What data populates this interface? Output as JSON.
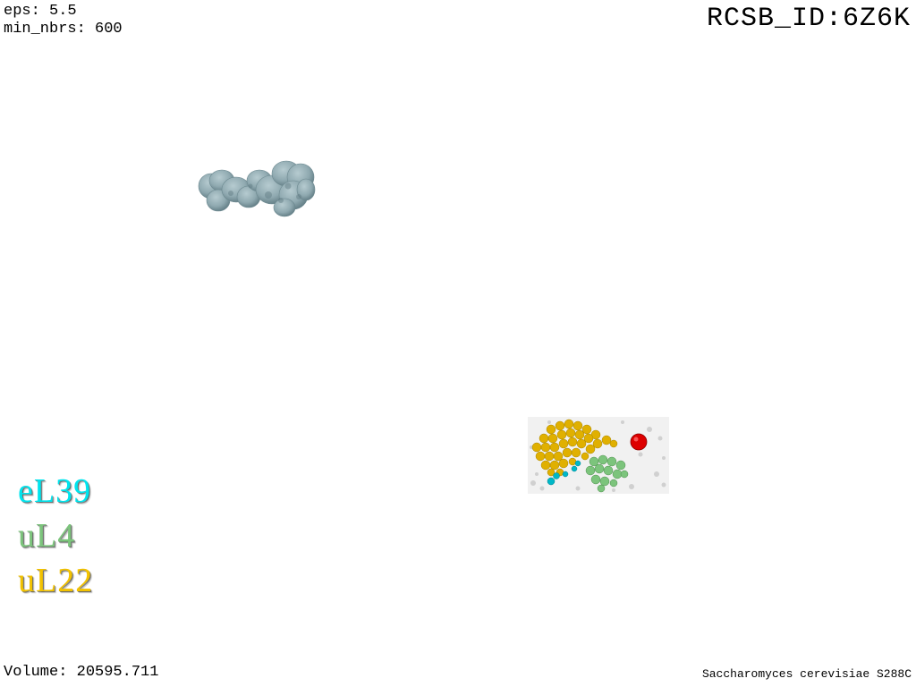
{
  "header": {
    "eps": "eps: 5.5",
    "min_nbrs": "min_nbrs: 600",
    "rcsb_id": "RCSB_ID:6Z6K"
  },
  "legend": {
    "items": [
      {
        "label": "eL39",
        "color": "#00e5ee"
      },
      {
        "label": "uL4",
        "color": "#7cc47c"
      },
      {
        "label": "uL22",
        "color": "#f2c200"
      }
    ]
  },
  "footer": {
    "volume": "Volume: 20595.711",
    "organism": "Saccharomyces cerevisiae S288C"
  },
  "visuals": {
    "blob_color": "#8fa9b0",
    "cluster_colors": {
      "background": "#cfcfcf",
      "uL22": "#e0b000",
      "uL4": "#7cc47c",
      "eL39": "#00b8c8",
      "marker": "#dd0000"
    }
  }
}
